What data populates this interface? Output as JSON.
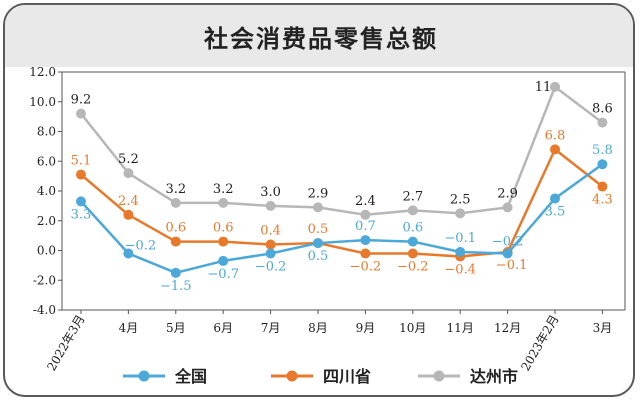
{
  "colors": {
    "national": "#4ba8d8",
    "sichuan": "#e8792b",
    "dazhou": "#b7b7b7",
    "title_bg": "#e9e9e9"
  },
  "chart_data": {
    "type": "line",
    "title": "社会消费品零售总额",
    "categories": [
      "2022年3月",
      "4月",
      "5月",
      "6月",
      "7月",
      "8月",
      "9月",
      "10月",
      "11月",
      "12月",
      "2023年2月",
      "3月"
    ],
    "yticks": [
      "12.0",
      "10.0",
      "8.0",
      "6.0",
      "4.0",
      "2.0",
      "0.0",
      "-2.0",
      "-4.0"
    ],
    "ylim": [
      -4,
      12
    ],
    "grid": false,
    "legend_position": "bottom",
    "series": [
      {
        "name": "全国",
        "values": [
          3.3,
          -0.2,
          -1.5,
          -0.7,
          -0.2,
          0.5,
          0.7,
          0.6,
          -0.1,
          -0.2,
          3.5,
          5.8
        ],
        "labels": [
          "3.3",
          "−0.2",
          "−1.5",
          "−0.7",
          "−0.2",
          "0.5",
          "0.7",
          "0.6",
          "−0.1",
          "−0.2",
          "3.5",
          "5.8"
        ]
      },
      {
        "name": "四川省",
        "values": [
          5.1,
          2.4,
          0.6,
          0.6,
          0.4,
          0.5,
          -0.2,
          -0.2,
          -0.4,
          -0.1,
          6.8,
          4.3
        ],
        "labels": [
          "5.1",
          "2.4",
          "0.6",
          "0.6",
          "0.4",
          "0.5",
          "−0.2",
          "−0.2",
          "−0.4",
          "−0.1",
          "6.8",
          "4.3"
        ]
      },
      {
        "name": "达州市",
        "values": [
          9.2,
          5.2,
          3.2,
          3.2,
          3.0,
          2.9,
          2.4,
          2.7,
          2.5,
          2.9,
          11,
          8.6
        ],
        "labels": [
          "9.2",
          "5.2",
          "3.2",
          "3.2",
          "3.0",
          "2.9",
          "2.4",
          "2.7",
          "2.5",
          "2.9",
          "11",
          "8.6"
        ]
      }
    ]
  }
}
